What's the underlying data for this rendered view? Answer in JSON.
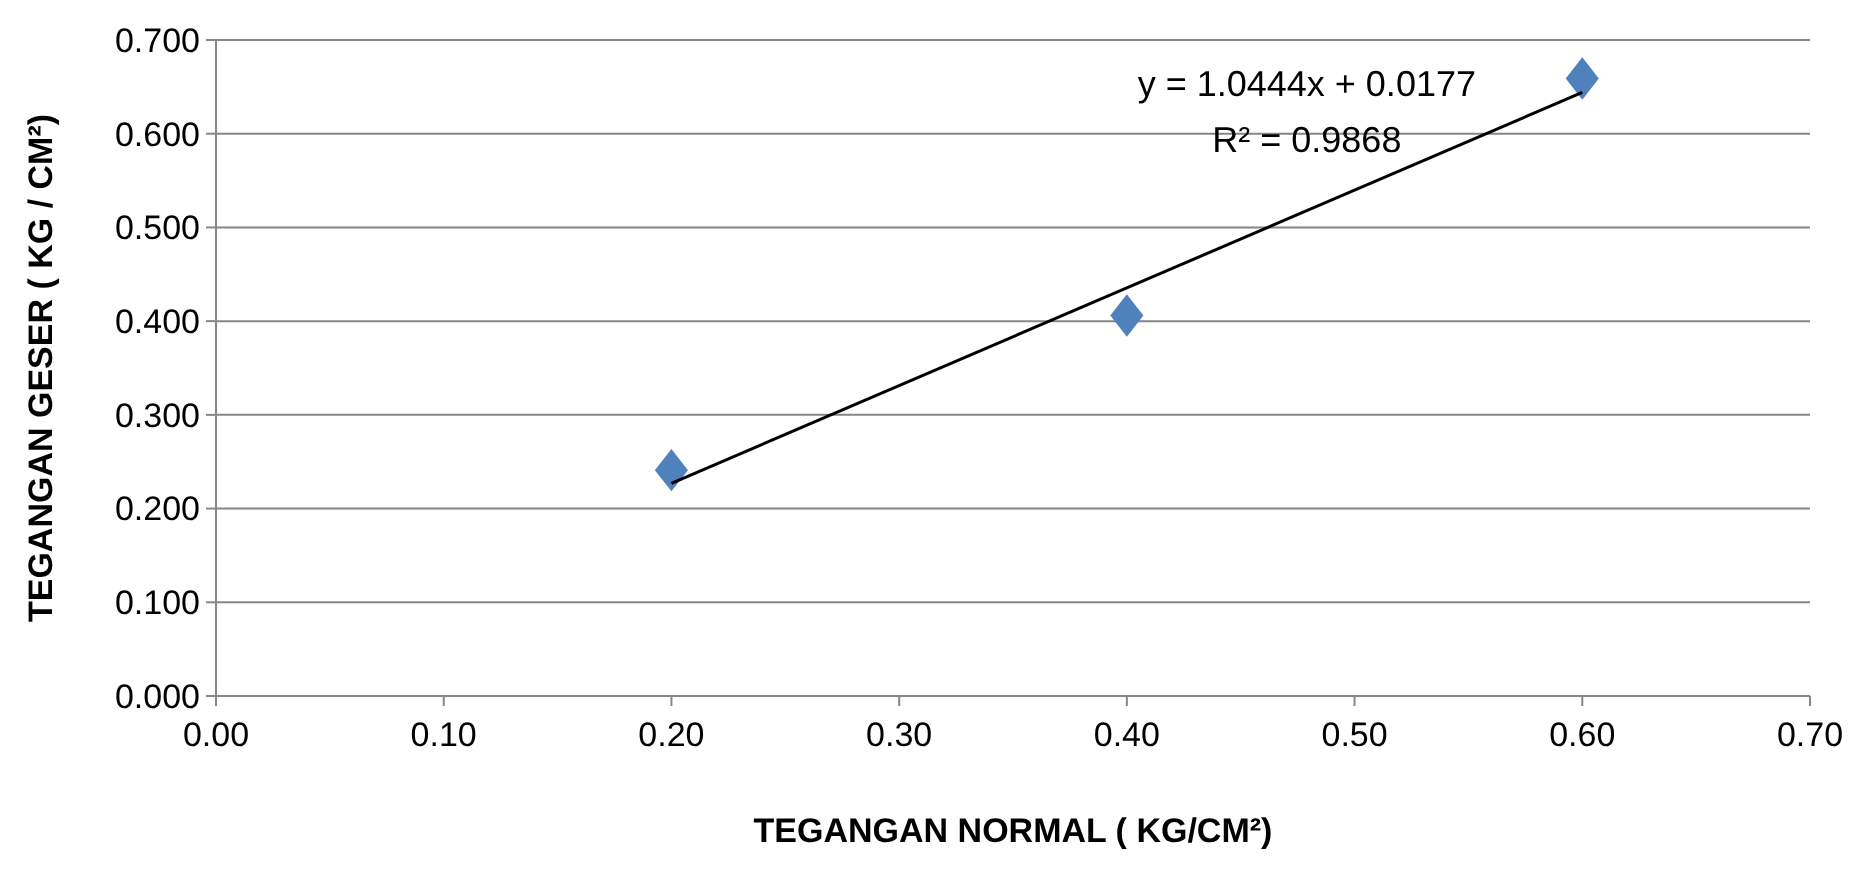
{
  "chart_data": {
    "type": "scatter",
    "xlabel": "TEGANGAN NORMAL ( KG/CM²)",
    "ylabel": "TEGANGAN GESER ( KG / CM²)",
    "xlim": [
      0,
      0.7
    ],
    "ylim": [
      0,
      0.7
    ],
    "xticks": [
      {
        "value": 0,
        "label": "0.00"
      },
      {
        "value": 0.1,
        "label": "0.10"
      },
      {
        "value": 0.2,
        "label": "0.20"
      },
      {
        "value": 0.3,
        "label": "0.30"
      },
      {
        "value": 0.4,
        "label": "0.40"
      },
      {
        "value": 0.5,
        "label": "0.50"
      },
      {
        "value": 0.6,
        "label": "0.60"
      },
      {
        "value": 0.7,
        "label": "0.70"
      }
    ],
    "yticks": [
      {
        "value": 0,
        "label": "0.000"
      },
      {
        "value": 0.1,
        "label": "0.100"
      },
      {
        "value": 0.2,
        "label": "0.200"
      },
      {
        "value": 0.3,
        "label": "0.300"
      },
      {
        "value": 0.4,
        "label": "0.400"
      },
      {
        "value": 0.5,
        "label": "0.500"
      },
      {
        "value": 0.6,
        "label": "0.600"
      },
      {
        "value": 0.7,
        "label": "0.700"
      }
    ],
    "grid": "y",
    "series": [
      {
        "color": "#4f81bd",
        "marker": "diamond",
        "x": [
          0.2,
          0.4,
          0.6
        ],
        "values": [
          0.241,
          0.406,
          0.659
        ]
      },
      {
        "type": "line",
        "color": "#000000",
        "x": [
          0.2,
          0.6
        ],
        "values": [
          0.227,
          0.644
        ]
      }
    ],
    "annotations": [
      "y = 1.0444x + 0.0177",
      "R² = 0.9868"
    ]
  }
}
